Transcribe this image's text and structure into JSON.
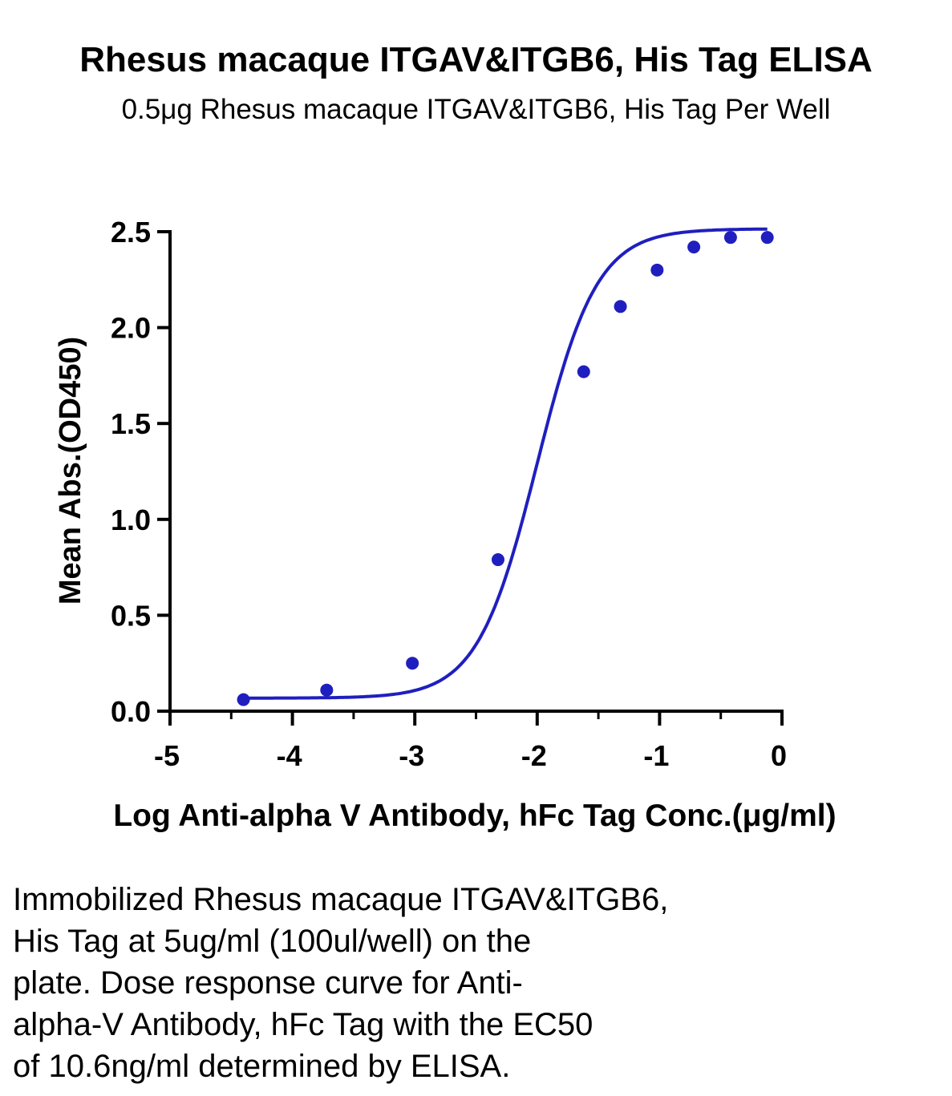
{
  "chart_data": {
    "type": "scatter",
    "title": "Rhesus macaque ITGAV&ITGB6, His Tag ELISA",
    "subtitle": "0.5μg Rhesus macaque ITGAV&ITGB6, His Tag Per Well",
    "xlabel": "Log Anti-alpha V Antibody, hFc Tag Conc.(μg/ml)",
    "ylabel": "Mean Abs.(OD450)",
    "xlim": [
      -5,
      0
    ],
    "ylim": [
      0,
      2.5
    ],
    "x_ticks": [
      "-5",
      "-4",
      "-3",
      "-2",
      "-1",
      "0"
    ],
    "y_ticks": [
      "0.0",
      "0.5",
      "1.0",
      "1.5",
      "2.0",
      "2.5"
    ],
    "grid": false,
    "series": [
      {
        "x": [
          -4.4,
          -3.72,
          -3.02,
          -2.32,
          -1.62,
          -1.32,
          -1.02,
          -0.72,
          -0.42,
          -0.12
        ],
        "y": [
          0.06,
          0.11,
          0.25,
          0.79,
          1.77,
          2.11,
          2.3,
          2.42,
          2.47,
          2.47
        ],
        "color": "#1f1fbf"
      }
    ]
  },
  "caption_lines": [
    "Immobilized Rhesus macaque ITGAV&ITGB6,",
    "His Tag at 5ug/ml (100ul/well) on the",
    "plate. Dose response curve for Anti-",
    "alpha-V Antibody, hFc Tag with the EC50",
    "of 10.6ng/ml determined by ELISA."
  ]
}
